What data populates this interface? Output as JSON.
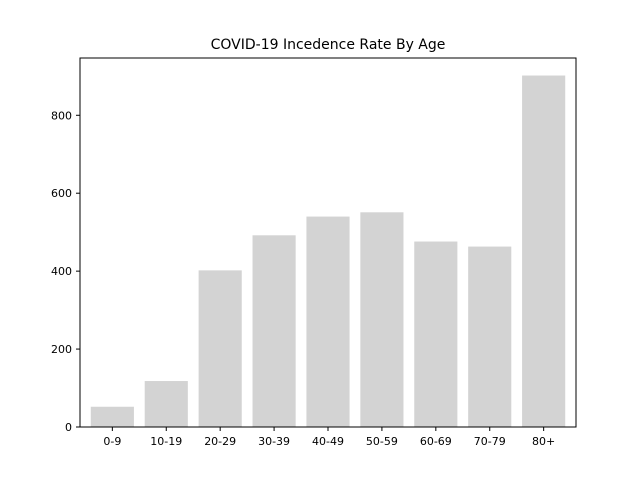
{
  "colors": {
    "bar": "#d3d3d3",
    "axis": "#000000",
    "background": "#ffffff"
  },
  "chart_data": {
    "type": "bar",
    "title": "COVID-19 Incedence Rate By Age",
    "xlabel": "",
    "ylabel": "",
    "categories": [
      "0-9",
      "10-19",
      "20-29",
      "30-39",
      "40-49",
      "50-59",
      "60-69",
      "70-79",
      "80+"
    ],
    "values": [
      52,
      118,
      402,
      492,
      540,
      551,
      476,
      463,
      902
    ],
    "yticks": [
      0,
      200,
      400,
      600,
      800
    ],
    "ylim": [
      0,
      947
    ],
    "grid": false,
    "legend": "none"
  }
}
